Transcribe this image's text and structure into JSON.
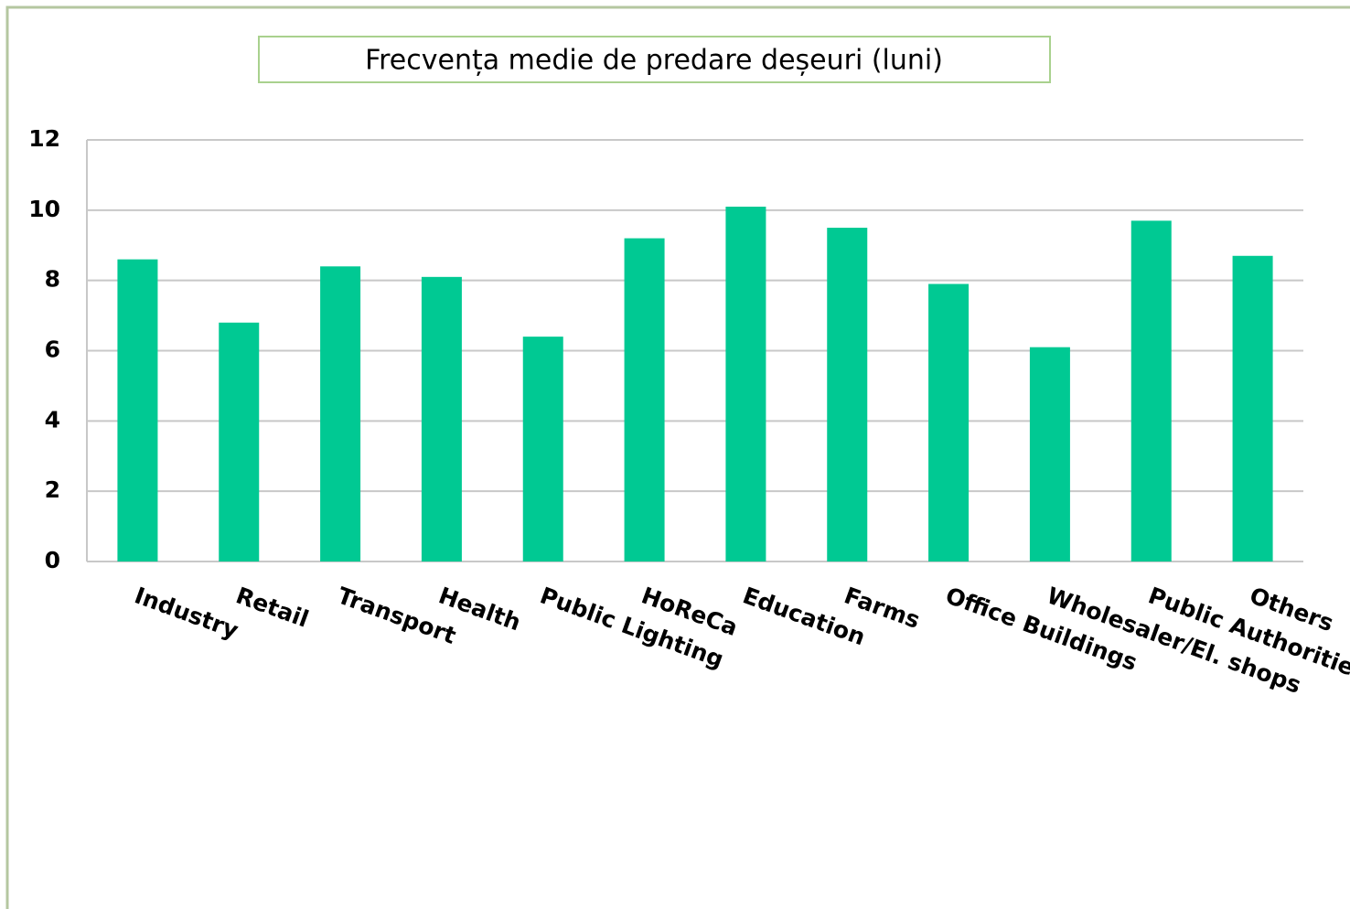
{
  "chart_data": {
    "type": "bar",
    "title": "Frecvența medie de predare deșeuri (luni)",
    "categories": [
      "Industry",
      "Retail",
      "Transport",
      "Health",
      "Public Lighting",
      "HoReCa",
      "Education",
      "Farms",
      "Office Buildings",
      "Wholesaler/El. shops",
      "Public Authorities",
      "Others"
    ],
    "values": [
      8.6,
      6.8,
      8.4,
      8.1,
      6.4,
      9.2,
      10.1,
      9.5,
      7.9,
      6.1,
      9.7,
      8.7
    ],
    "color": "#00c993",
    "ylim": [
      0,
      12
    ],
    "yticks": [
      0,
      2,
      4,
      6,
      8,
      10,
      12
    ],
    "grid": true
  }
}
